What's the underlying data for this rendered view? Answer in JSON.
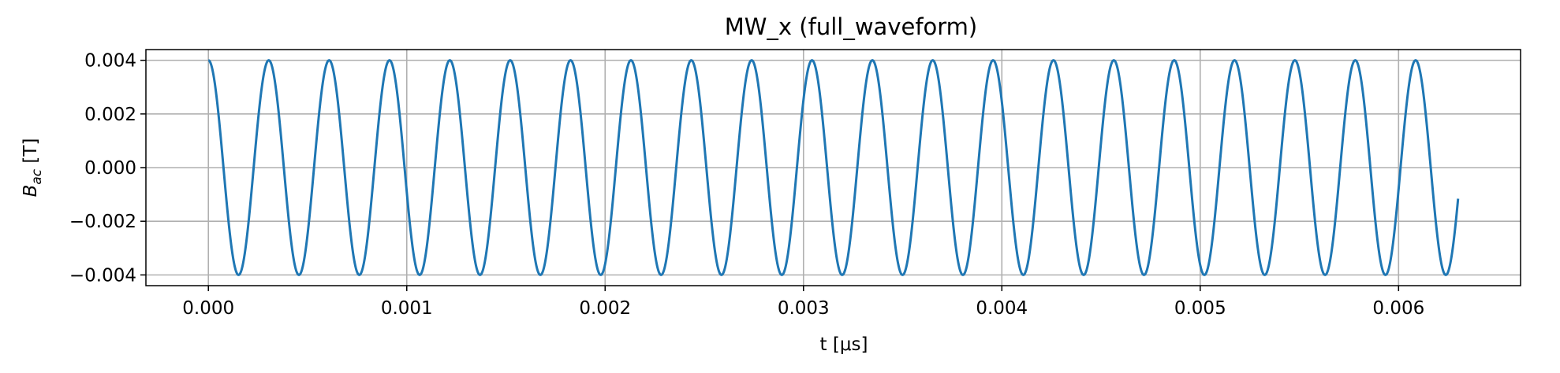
{
  "chart_data": {
    "type": "line",
    "title": "MW_x (full_waveform)",
    "xlabel": "t [μs]",
    "ylabel": "B_ac [T]",
    "xlim": [
      -0.000315,
      0.006615
    ],
    "ylim": [
      -0.0044,
      0.0044
    ],
    "xticks": [
      0.0,
      0.001,
      0.002,
      0.003,
      0.004,
      0.005,
      0.006
    ],
    "xtick_labels": [
      "0.000",
      "0.001",
      "0.002",
      "0.003",
      "0.004",
      "0.005",
      "0.006"
    ],
    "yticks": [
      0.004,
      0.002,
      0.0,
      -0.002,
      -0.004
    ],
    "ytick_labels": [
      "0.004",
      "0.002",
      "0.000",
      "−0.002",
      "−0.004"
    ],
    "grid": true,
    "series": [
      {
        "color": "#1f77b4",
        "function": "cosine",
        "amplitude": 0.004,
        "period": 0.0003043,
        "x_start": 0.0,
        "x_end": 0.0063
      }
    ]
  }
}
